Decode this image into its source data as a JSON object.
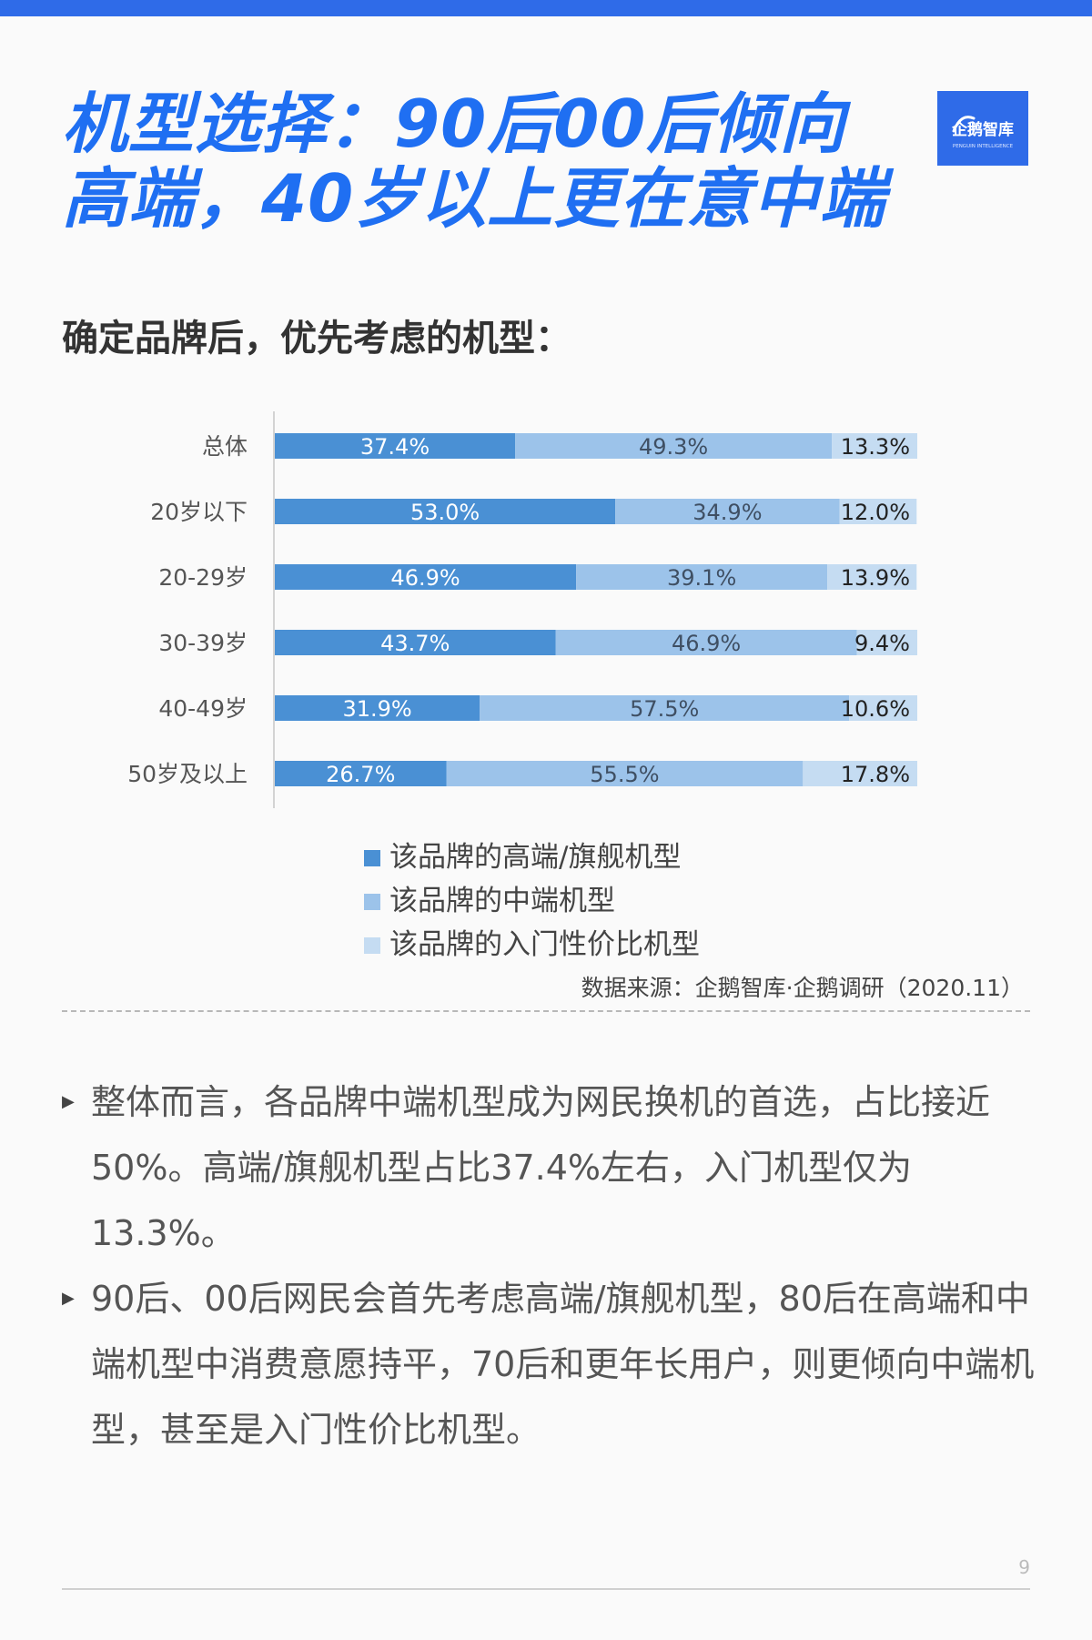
{
  "title": "机型选择：90后00后倾向高端，40岁以上更在意中端",
  "subtitle": "确定品牌后，优先考虑的机型：",
  "logo": {
    "name": "企鹅智库",
    "tagline": "PENGUIN INTELLIGENCE"
  },
  "colors": {
    "brand": "#2f6be8",
    "title": "#1f6ff2",
    "high_end": "#4a90d4",
    "mid_range": "#9cc3ea",
    "entry_level": "#c5dcf2"
  },
  "chart_data": {
    "type": "bar",
    "orientation": "horizontal",
    "stacked": true,
    "categories": [
      "总体",
      "20岁以下",
      "20-29岁",
      "30-39岁",
      "40-49岁",
      "50岁及以上"
    ],
    "series": [
      {
        "name": "该品牌的高端/旗舰机型",
        "values": [
          37.4,
          53.0,
          46.9,
          43.7,
          31.9,
          26.7
        ]
      },
      {
        "name": "该品牌的中端机型",
        "values": [
          49.3,
          34.9,
          39.1,
          46.9,
          57.5,
          55.5
        ]
      },
      {
        "name": "该品牌的入门性价比机型",
        "values": [
          13.3,
          12.0,
          13.9,
          9.4,
          10.6,
          17.8
        ]
      }
    ],
    "value_labels": [
      [
        "37.4%",
        "53.0%",
        "46.9%",
        "43.7%",
        "31.9%",
        "26.7%"
      ],
      [
        "49.3%",
        "34.9%",
        "39.1%",
        "46.9%",
        "57.5%",
        "55.5%"
      ],
      [
        "13.3%",
        "12.0%",
        "13.9%",
        "9.4%",
        "10.6%",
        "17.8%"
      ]
    ],
    "xlim": [
      0,
      100
    ],
    "legend_position": "bottom",
    "grid": false
  },
  "source": "数据来源：企鹅智库·企鹅调研（2020.11）",
  "bullets": [
    "整体而言，各品牌中端机型成为网民换机的首选，占比接近50%。高端/旗舰机型占比37.4%左右，入门机型仅为13.3%。",
    "90后、00后网民会首先考虑高端/旗舰机型，80后在高端和中端机型中消费意愿持平，70后和更年长用户，则更倾向中端机型，甚至是入门性价比机型。"
  ],
  "page_number": "9"
}
